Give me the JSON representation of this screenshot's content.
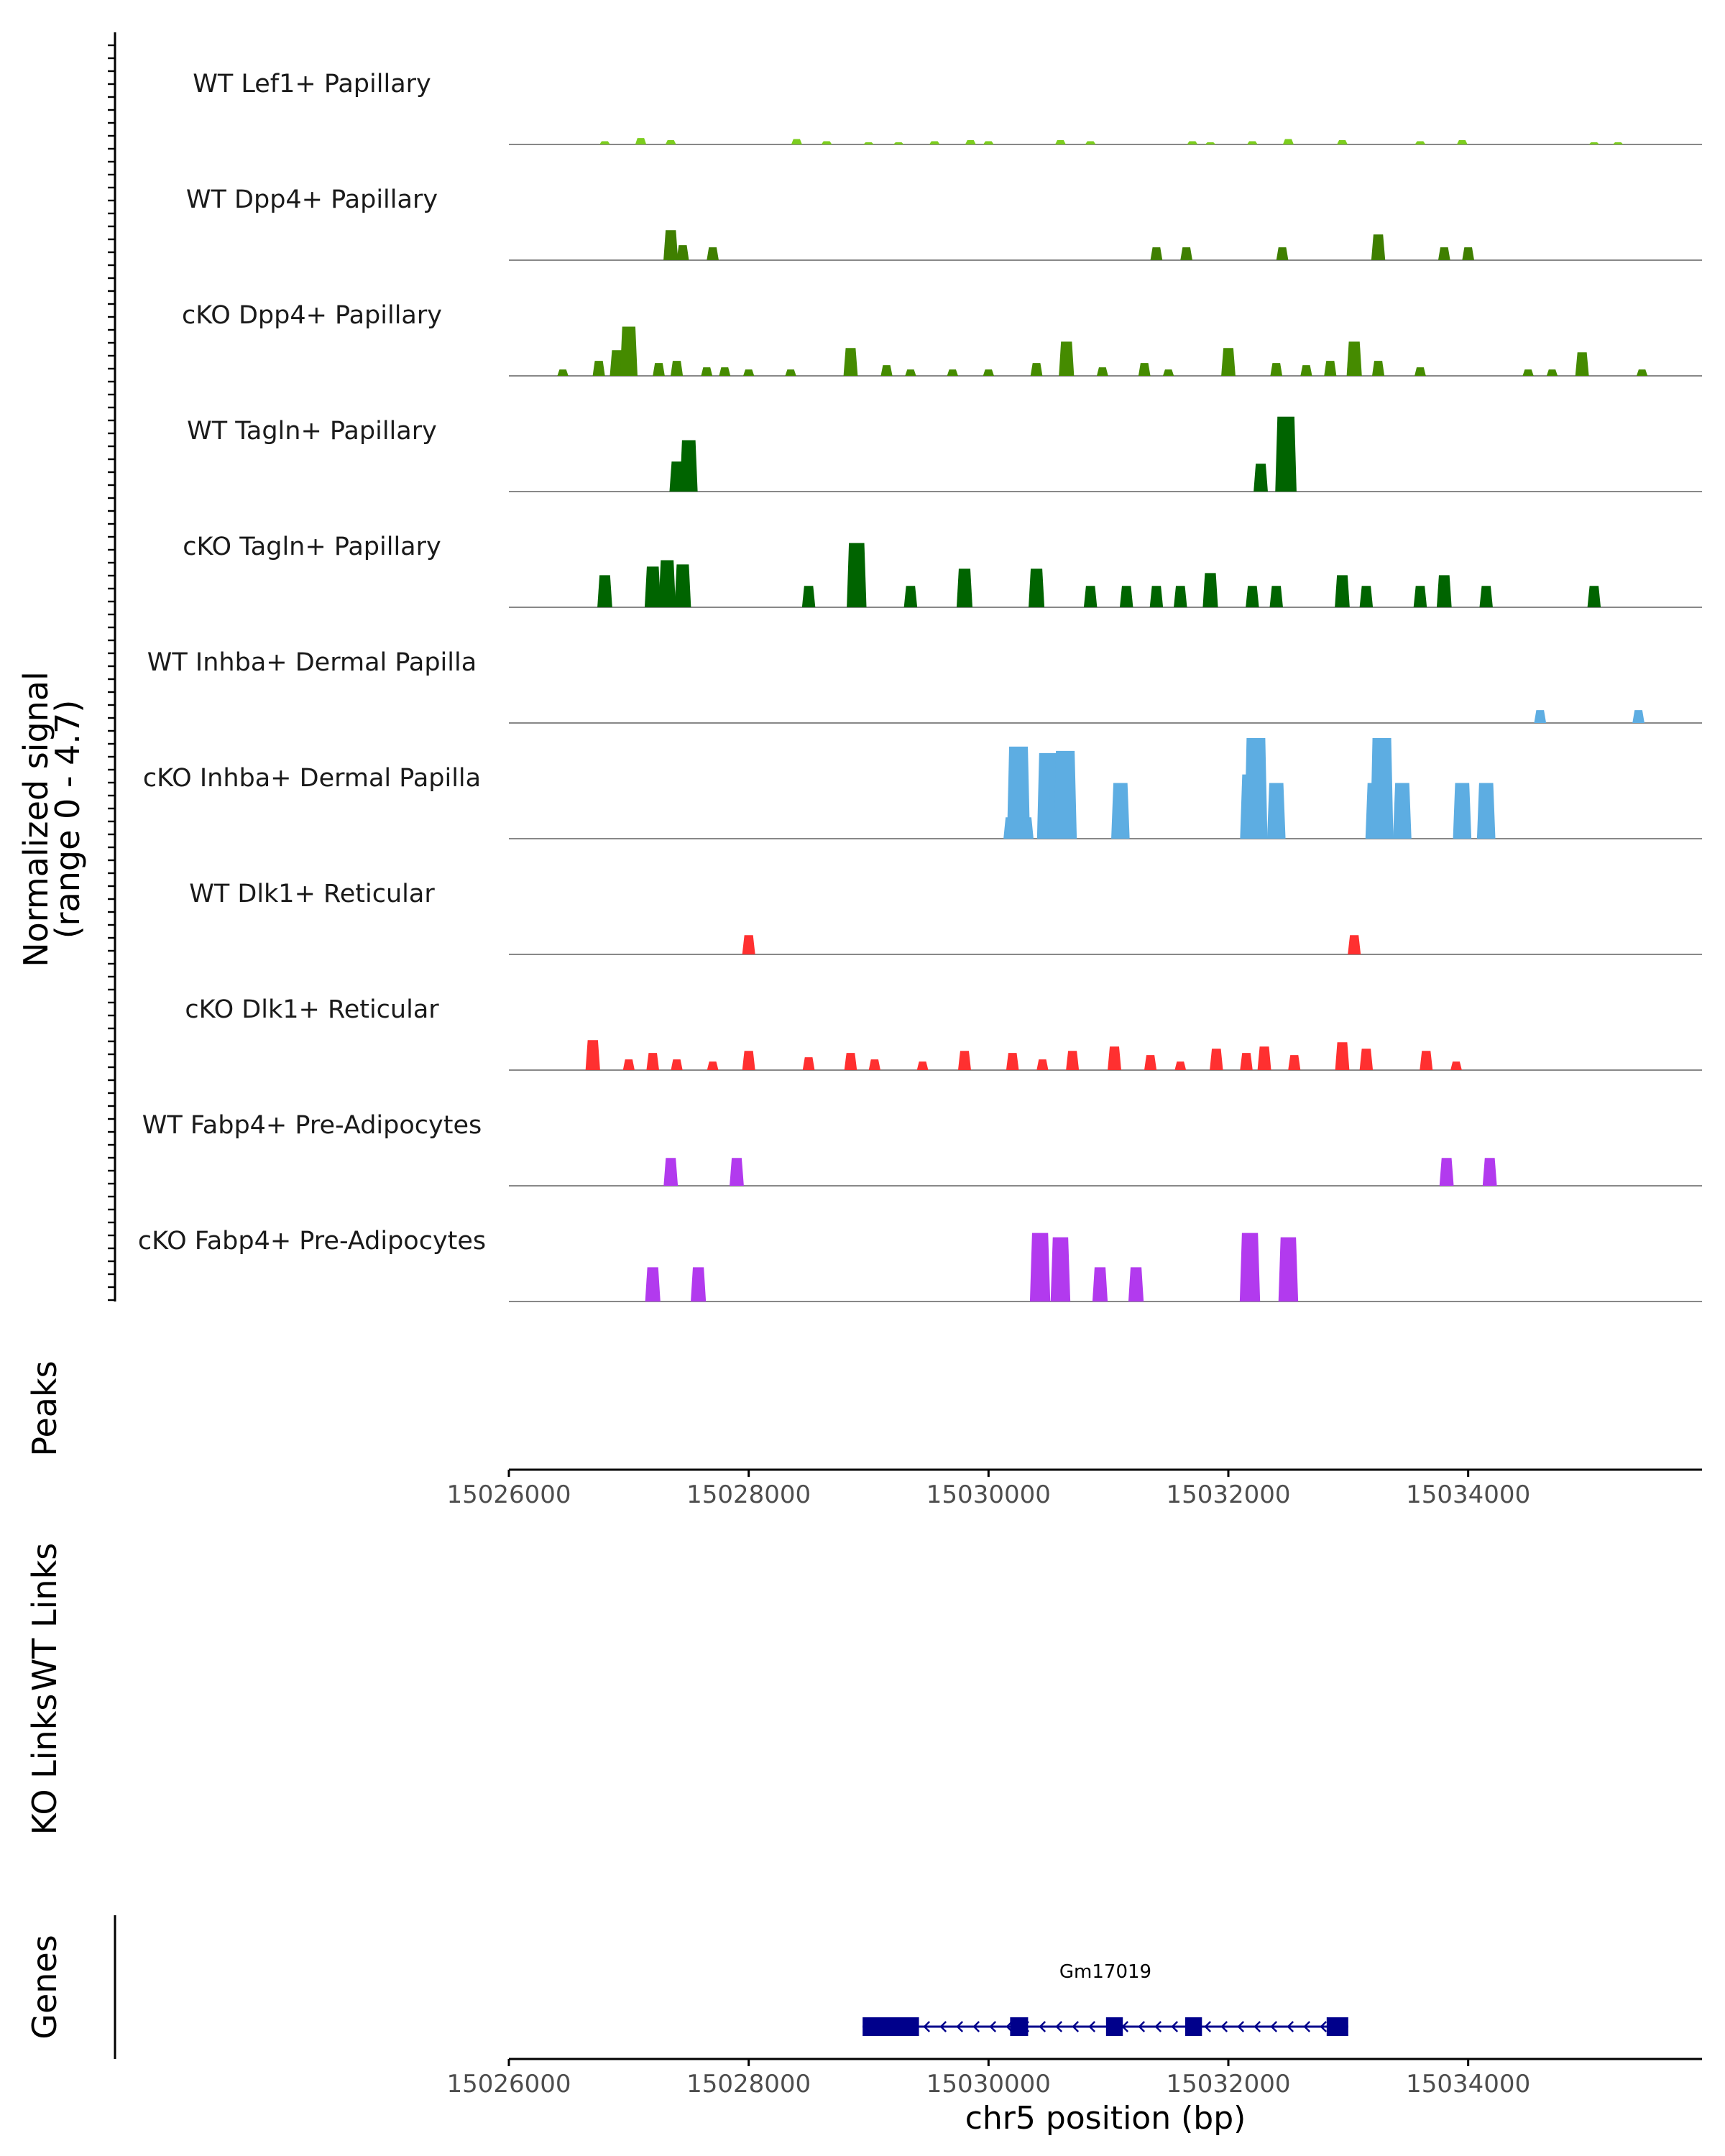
{
  "chart_data": {
    "type": "area",
    "chromosome": "chr5",
    "region": [
      15026000,
      15035950
    ],
    "ylabel": "Normalized signal",
    "ylabel_range": "(range 0 - 4.7)",
    "y_range": [
      0,
      4.7
    ],
    "xlabel": "chr5 position (bp)",
    "x_ticks": [
      15026000,
      15028000,
      15030000,
      15032000,
      15034000
    ],
    "tracks": [
      {
        "name": "WT Lef1+ Papillary",
        "color": "#7CCD1E",
        "peaks": [
          [
            15026800,
            0.15
          ],
          [
            15027100,
            0.3
          ],
          [
            15027350,
            0.2
          ],
          [
            15028400,
            0.25
          ],
          [
            15028650,
            0.15
          ],
          [
            15029000,
            0.1
          ],
          [
            15029250,
            0.1
          ],
          [
            15029550,
            0.15
          ],
          [
            15029850,
            0.2
          ],
          [
            15030000,
            0.15
          ],
          [
            15030600,
            0.2
          ],
          [
            15030850,
            0.15
          ],
          [
            15031700,
            0.15
          ],
          [
            15031850,
            0.1
          ],
          [
            15032200,
            0.15
          ],
          [
            15032500,
            0.25
          ],
          [
            15032950,
            0.2
          ],
          [
            15033600,
            0.15
          ],
          [
            15033950,
            0.2
          ],
          [
            15035050,
            0.1
          ],
          [
            15035250,
            0.1
          ]
        ]
      },
      {
        "name": "WT Dpp4+ Papillary",
        "color": "#3F7F00",
        "peaks": [
          [
            15027350,
            1.4
          ],
          [
            15027450,
            0.7
          ],
          [
            15027700,
            0.6
          ],
          [
            15031400,
            0.6
          ],
          [
            15031650,
            0.6
          ],
          [
            15032450,
            0.6
          ],
          [
            15033250,
            1.2
          ],
          [
            15033800,
            0.6
          ],
          [
            15034000,
            0.6
          ]
        ]
      },
      {
        "name": "cKO Dpp4+ Papillary",
        "color": "#458B00",
        "peaks": [
          [
            15026450,
            0.3
          ],
          [
            15026750,
            0.7
          ],
          [
            15026900,
            1.2
          ],
          [
            15027000,
            2.3
          ],
          [
            15027250,
            0.6
          ],
          [
            15027400,
            0.7
          ],
          [
            15027650,
            0.4
          ],
          [
            15027800,
            0.4
          ],
          [
            15028000,
            0.3
          ],
          [
            15028350,
            0.3
          ],
          [
            15028850,
            1.3
          ],
          [
            15029150,
            0.5
          ],
          [
            15029350,
            0.3
          ],
          [
            15029700,
            0.3
          ],
          [
            15030000,
            0.3
          ],
          [
            15030400,
            0.6
          ],
          [
            15030650,
            1.6
          ],
          [
            15030950,
            0.4
          ],
          [
            15031300,
            0.6
          ],
          [
            15031500,
            0.3
          ],
          [
            15032000,
            1.3
          ],
          [
            15032400,
            0.6
          ],
          [
            15032650,
            0.5
          ],
          [
            15032850,
            0.7
          ],
          [
            15033050,
            1.6
          ],
          [
            15033250,
            0.7
          ],
          [
            15033600,
            0.4
          ],
          [
            15034500,
            0.3
          ],
          [
            15034700,
            0.3
          ],
          [
            15034950,
            1.1
          ],
          [
            15035450,
            0.3
          ]
        ]
      },
      {
        "name": "WT Tagln+ Papillary",
        "color": "#006400",
        "peaks": [
          [
            15027400,
            1.4
          ],
          [
            15027500,
            2.4
          ],
          [
            15032270,
            1.3
          ],
          [
            15032480,
            3.5
          ]
        ]
      },
      {
        "name": "cKO Tagln+ Papillary",
        "color": "#006400",
        "peaks": [
          [
            15026800,
            1.5
          ],
          [
            15027200,
            1.9
          ],
          [
            15027320,
            2.2
          ],
          [
            15027450,
            2.0
          ],
          [
            15028500,
            1.0
          ],
          [
            15028900,
            3.0
          ],
          [
            15029350,
            1.0
          ],
          [
            15029800,
            1.8
          ],
          [
            15030400,
            1.8
          ],
          [
            15030850,
            1.0
          ],
          [
            15031150,
            1.0
          ],
          [
            15031400,
            1.0
          ],
          [
            15031600,
            1.0
          ],
          [
            15031850,
            1.6
          ],
          [
            15032200,
            1.0
          ],
          [
            15032400,
            1.0
          ],
          [
            15032950,
            1.5
          ],
          [
            15033150,
            1.0
          ],
          [
            15033600,
            1.0
          ],
          [
            15033800,
            1.5
          ],
          [
            15034150,
            1.0
          ],
          [
            15035050,
            1.0
          ]
        ]
      },
      {
        "name": "WT Inhba+ Dermal Papilla",
        "color": "#5DADE2",
        "peaks": [
          [
            15034600,
            0.6
          ],
          [
            15035420,
            0.6
          ]
        ]
      },
      {
        "name": "cKO Inhba+ Dermal Papilla",
        "color": "#5DADE2",
        "peaks": [
          [
            15030180,
            1.0
          ],
          [
            15030250,
            4.3
          ],
          [
            15030320,
            1.0
          ],
          [
            15030500,
            4.0
          ],
          [
            15030570,
            2.5
          ],
          [
            15030640,
            4.1
          ],
          [
            15031100,
            2.6
          ],
          [
            15032180,
            3.0
          ],
          [
            15032230,
            4.7
          ],
          [
            15032400,
            2.6
          ],
          [
            15033220,
            2.6
          ],
          [
            15033280,
            4.7
          ],
          [
            15033450,
            2.6
          ],
          [
            15033950,
            2.6
          ],
          [
            15034150,
            2.6
          ]
        ]
      },
      {
        "name": "WT Dlk1+ Reticular",
        "color": "#FF3030",
        "peaks": [
          [
            15028000,
            0.9
          ],
          [
            15033050,
            0.9
          ]
        ]
      },
      {
        "name": "cKO Dlk1+ Reticular",
        "color": "#FF3030",
        "peaks": [
          [
            15026700,
            1.4
          ],
          [
            15027000,
            0.5
          ],
          [
            15027200,
            0.8
          ],
          [
            15027400,
            0.5
          ],
          [
            15027700,
            0.4
          ],
          [
            15028000,
            0.9
          ],
          [
            15028500,
            0.6
          ],
          [
            15028850,
            0.8
          ],
          [
            15029050,
            0.5
          ],
          [
            15029450,
            0.4
          ],
          [
            15029800,
            0.9
          ],
          [
            15030200,
            0.8
          ],
          [
            15030450,
            0.5
          ],
          [
            15030700,
            0.9
          ],
          [
            15031050,
            1.1
          ],
          [
            15031350,
            0.7
          ],
          [
            15031600,
            0.4
          ],
          [
            15031900,
            1.0
          ],
          [
            15032150,
            0.8
          ],
          [
            15032300,
            1.1
          ],
          [
            15032550,
            0.7
          ],
          [
            15032950,
            1.3
          ],
          [
            15033150,
            1.0
          ],
          [
            15033650,
            0.9
          ],
          [
            15033900,
            0.4
          ]
        ]
      },
      {
        "name": "WT Fabp4+ Pre-Adipocytes",
        "color": "#B23AEE",
        "peaks": [
          [
            15027350,
            1.3
          ],
          [
            15027900,
            1.3
          ],
          [
            15033820,
            1.3
          ],
          [
            15034180,
            1.3
          ]
        ]
      },
      {
        "name": "cKO Fabp4+ Pre-Adipocytes",
        "color": "#B23AEE",
        "peaks": [
          [
            15027200,
            1.6
          ],
          [
            15027580,
            1.6
          ],
          [
            15030430,
            3.2
          ],
          [
            15030600,
            3.0
          ],
          [
            15030930,
            1.6
          ],
          [
            15031230,
            1.6
          ],
          [
            15032180,
            3.2
          ],
          [
            15032500,
            3.0
          ]
        ]
      }
    ],
    "sections": [
      "Peaks",
      "WT Links",
      "KO Links",
      "Genes"
    ],
    "gene": {
      "name": "Gm17019",
      "start": 15028950,
      "end": 15033000,
      "strand": "-",
      "color": "#00008B",
      "exons": [
        [
          15028950,
          15029420
        ],
        [
          15030180,
          15030330
        ],
        [
          15030980,
          15031120
        ],
        [
          15031640,
          15031780
        ],
        [
          15032820,
          15033000
        ]
      ]
    }
  }
}
